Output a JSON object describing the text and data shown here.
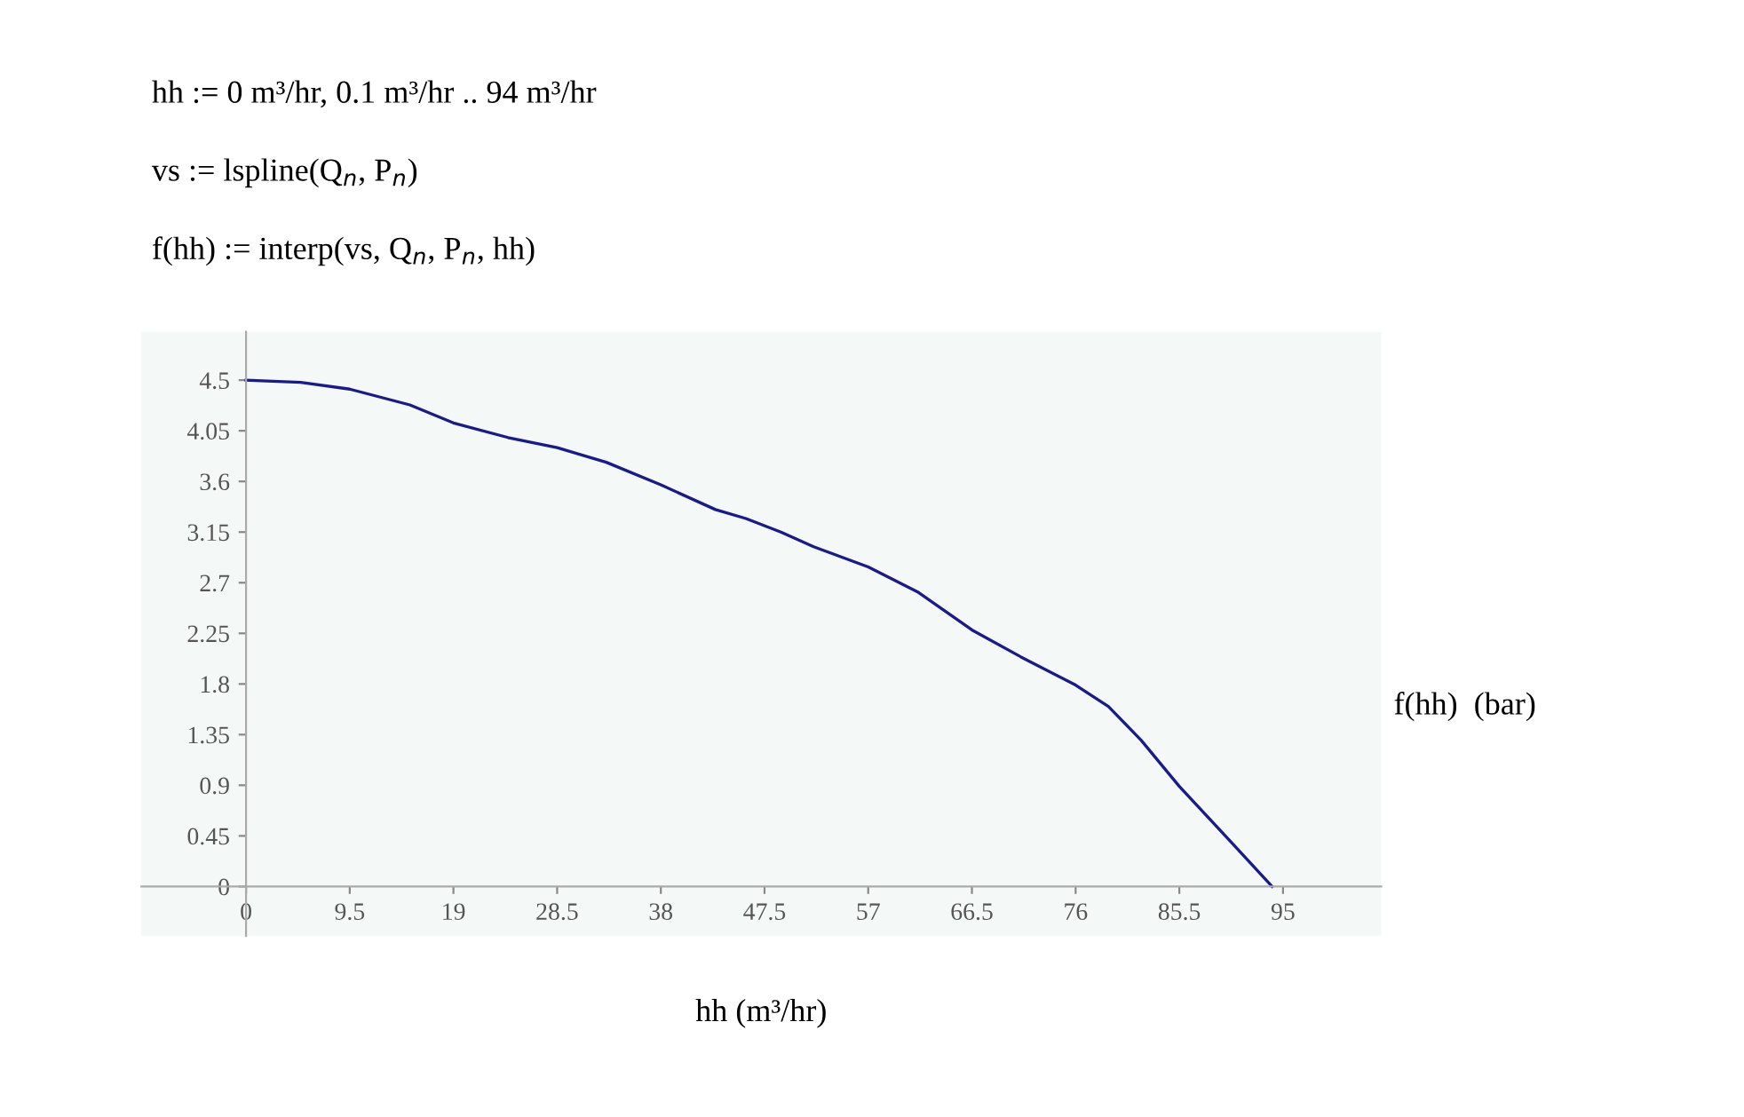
{
  "chart_data": {
    "type": "line",
    "annotations": [
      "hh := 0 m³/hr, 0.1 m³/hr .. 94 m³/hr",
      "vs := lspline(Q$_{n}$, P$_{n}$)",
      "f(hh) := interp(vs, Q$_{n}$, P$_{n}$, hh)"
    ],
    "xlabel": "hh (m³/hr)",
    "ylabel": "f(hh)  (bar)",
    "series": [
      {
        "color": "#1a1a8c",
        "x": [
          0,
          5,
          9.5,
          15,
          19,
          24,
          28.5,
          33,
          38,
          43,
          45.8,
          49,
          52,
          57,
          61.5,
          66.5,
          71,
          76,
          79,
          82,
          85.5,
          90,
          94
        ],
        "values": [
          4.5,
          4.48,
          4.42,
          4.28,
          4.12,
          3.99,
          3.9,
          3.77,
          3.57,
          3.35,
          3.27,
          3.15,
          3.02,
          2.84,
          2.62,
          2.28,
          2.04,
          1.79,
          1.6,
          1.3,
          0.89,
          0.42,
          0
        ]
      }
    ],
    "xlim": [
      -9.6,
      104
    ],
    "ylim": [
      -0.44,
      4.93
    ],
    "xticks": [
      0,
      9.5,
      19,
      28.5,
      38,
      47.5,
      57,
      66.5,
      76,
      85.5,
      95
    ],
    "yticks": [
      0,
      0.45,
      0.9,
      1.35,
      1.8,
      2.25,
      2.7,
      3.15,
      3.6,
      4.05,
      4.5
    ],
    "grid": false,
    "marker": "none",
    "line_style": "solid"
  }
}
